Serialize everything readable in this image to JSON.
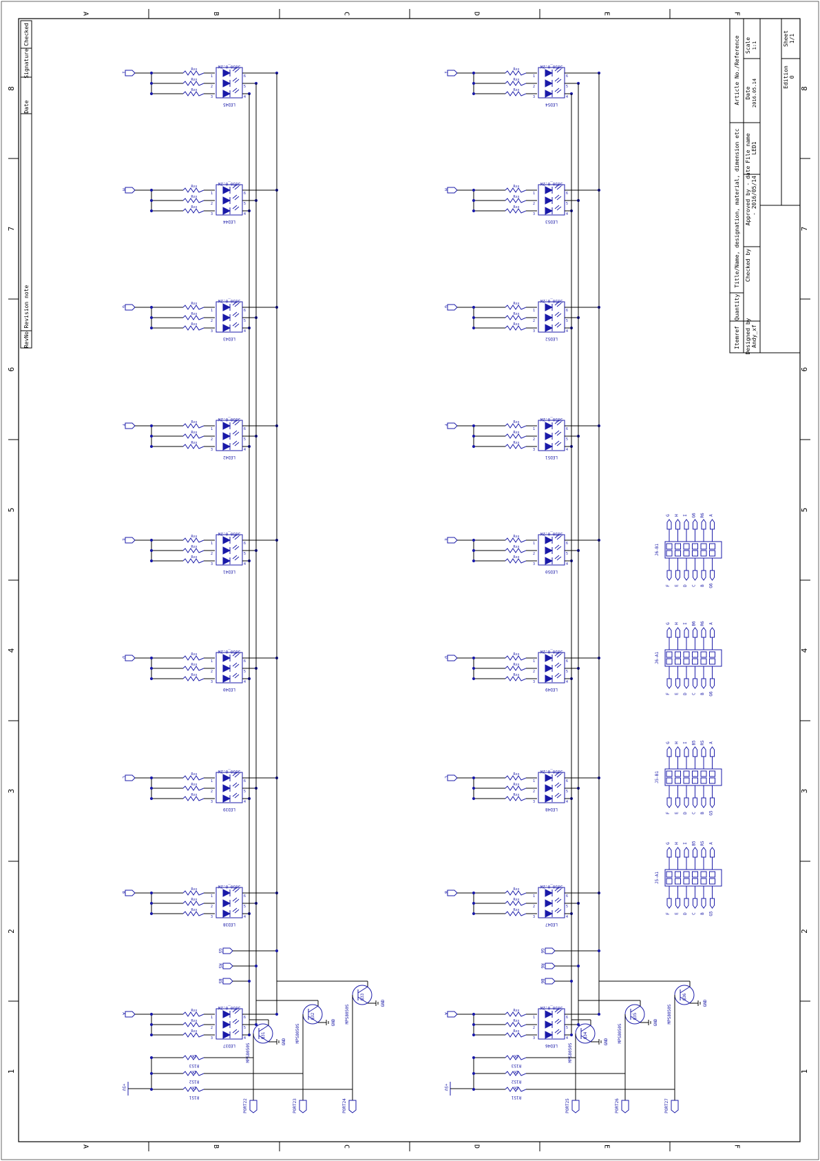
{
  "frame": {
    "columns": [
      "A",
      "B",
      "C",
      "D",
      "E",
      "F"
    ],
    "rows": [
      "8",
      "7",
      "6",
      "5",
      "4",
      "3",
      "2",
      "1"
    ]
  },
  "revision_table": {
    "headers": [
      "RevNo",
      "Revision note",
      "Date",
      "Signature",
      "Checked"
    ]
  },
  "title_block": {
    "itemref_label": "Itemref",
    "quantity_label": "Quantity",
    "title_label": "Title/Name, designation, material, dimension etc",
    "article_label": "Article No./Reference",
    "designed_by_label": "Designed by",
    "designed_by_value": "Andy_xf",
    "checked_by_label": "Checked by",
    "approved_by_label": "Approved by - date",
    "approved_by_value": "- 2016/05/14",
    "file_name_label": "File name",
    "file_name_value": "LED1",
    "date_label": "Date",
    "date_value": "2016.05.14",
    "scale_label": "Scale",
    "scale_value": "1:1",
    "edition_label": "Edition",
    "edition_value": "0",
    "sheet_label": "Sheet",
    "sheet_value": "1/1"
  },
  "led_columns": [
    {
      "name": "left",
      "leds": [
        {
          "ref": "LED45",
          "input": "I",
          "value": "5050_0.2W"
        },
        {
          "ref": "LED44",
          "input": "H",
          "value": "5050_0.2W"
        },
        {
          "ref": "LED43",
          "input": "G",
          "value": "5050_0.2W"
        },
        {
          "ref": "LED42",
          "input": "F",
          "value": "5050_0.2W"
        },
        {
          "ref": "LED41",
          "input": "E",
          "value": "5050_0.2W"
        },
        {
          "ref": "LED40",
          "input": "D",
          "value": "5050_0.2W"
        },
        {
          "ref": "LED39",
          "input": "C",
          "value": "5050_0.2W"
        },
        {
          "ref": "LED38",
          "input": "B",
          "value": "5050_0.2W"
        },
        {
          "ref": "LED37",
          "input": "A",
          "value": "5050_0.2W"
        }
      ],
      "side_ports": [
        "G5",
        "R5",
        "B5"
      ],
      "resistors": [
        "R153",
        "R152",
        "R151"
      ],
      "resistor_value": "1K",
      "supply": "+5V",
      "transistors": [
        {
          "ref": "Q31",
          "part": "MPS8050S",
          "port": "PORT22"
        },
        {
          "ref": "Q32",
          "part": "MPS8050S",
          "port": "PORT23"
        },
        {
          "ref": "Q33",
          "part": "MPS8050S",
          "port": "PORT24"
        }
      ]
    },
    {
      "name": "right",
      "leds": [
        {
          "ref": "LED54",
          "input": "I",
          "value": "5050_0.2W"
        },
        {
          "ref": "LED53",
          "input": "H",
          "value": "5050_0.2W"
        },
        {
          "ref": "LED52",
          "input": "G",
          "value": "5050_0.2W"
        },
        {
          "ref": "LED51",
          "input": "F",
          "value": "5050_0.2W"
        },
        {
          "ref": "LED50",
          "input": "E",
          "value": "5050_0.2W"
        },
        {
          "ref": "LED49",
          "input": "D",
          "value": "5050_0.2W"
        },
        {
          "ref": "LED48",
          "input": "C",
          "value": "5050_0.2W"
        },
        {
          "ref": "LED47",
          "input": "B",
          "value": "5050_0.2W"
        },
        {
          "ref": "LED46",
          "input": "A",
          "value": "5050_0.2W"
        }
      ],
      "side_ports": [
        "G6",
        "R6",
        "B6"
      ],
      "resistors": [
        "R153",
        "R152",
        "R151"
      ],
      "resistor_value": "1K",
      "supply": "+5V",
      "transistors": [
        {
          "ref": "Q34",
          "part": "MPS8050S",
          "port": "PORT25"
        },
        {
          "ref": "Q35",
          "part": "MPS8050S",
          "port": "PORT26"
        },
        {
          "ref": "Q36",
          "part": "MPS8050S",
          "port": "PORT27"
        }
      ]
    }
  ],
  "gnd_label": "GND",
  "connectors": [
    {
      "ref": "J6-B1",
      "top_pins": [
        "G",
        "H",
        "I",
        "G6",
        "R6",
        "A"
      ],
      "bottom_pins": [
        "F",
        "E",
        "D",
        "C",
        "B",
        "G6"
      ]
    },
    {
      "ref": "J6-A1",
      "top_pins": [
        "G",
        "H",
        "I",
        "B6",
        "R6",
        "A"
      ],
      "bottom_pins": [
        "F",
        "E",
        "D",
        "C",
        "B",
        "G6"
      ]
    },
    {
      "ref": "J5-B1",
      "top_pins": [
        "G",
        "H",
        "I",
        "B5",
        "R5",
        "A"
      ],
      "bottom_pins": [
        "F",
        "E",
        "D",
        "C",
        "B",
        "G5"
      ]
    },
    {
      "ref": "J5-A1",
      "top_pins": [
        "G",
        "H",
        "I",
        "B5",
        "R5",
        "A"
      ],
      "bottom_pins": [
        "F",
        "E",
        "D",
        "C",
        "B",
        "G5"
      ]
    }
  ]
}
